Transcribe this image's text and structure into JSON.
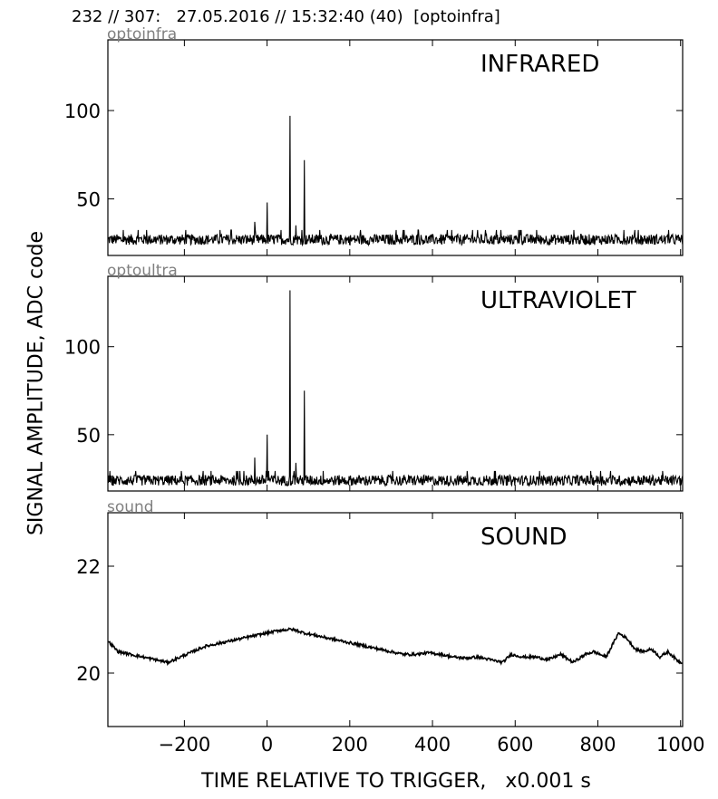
{
  "header": "232 // 307:   27.05.2016 // 15:32:40 (40)  [optoinfra]",
  "ylabel": "SIGNAL AMPLITUDE,  ADC code",
  "xlabel": "TIME RELATIVE TO TRIGGER,   x0.001 s",
  "chart_data": [
    {
      "type": "line",
      "channel_label": "optoinfra",
      "title": "INFRARED",
      "xlim": [
        -385,
        1005
      ],
      "ylim": [
        18,
        140
      ],
      "xticks": [
        -200,
        0,
        200,
        400,
        600,
        800,
        1000
      ],
      "yticks": [
        50,
        100
      ],
      "ytick_labels": [
        "50",
        "100"
      ],
      "baseline": 27,
      "noise": 3,
      "spikes": [
        [
          -30,
          37
        ],
        [
          0,
          48
        ],
        [
          55,
          97
        ],
        [
          70,
          35
        ],
        [
          90,
          72
        ]
      ],
      "color": "#000000"
    },
    {
      "type": "line",
      "channel_label": "optoultra",
      "title": "ULTRAVIOLET",
      "xlim": [
        -385,
        1005
      ],
      "ylim": [
        18,
        140
      ],
      "xticks": [
        -200,
        0,
        200,
        400,
        600,
        800,
        1000
      ],
      "yticks": [
        50,
        100
      ],
      "ytick_labels": [
        "50",
        "100"
      ],
      "baseline": 24,
      "noise": 3,
      "spikes": [
        [
          -30,
          37
        ],
        [
          0,
          50
        ],
        [
          55,
          132
        ],
        [
          70,
          34
        ],
        [
          90,
          75
        ]
      ],
      "color": "#000000"
    },
    {
      "type": "line",
      "channel_label": "sound",
      "title": "SOUND",
      "xlim": [
        -385,
        1005
      ],
      "ylim": [
        19,
        23
      ],
      "xticks": [
        -200,
        0,
        200,
        400,
        600,
        800,
        1000
      ],
      "xtick_labels": [
        "−200",
        "0",
        "200",
        "400",
        "600",
        "800",
        "1000"
      ],
      "yticks": [
        20,
        22
      ],
      "ytick_labels": [
        "20",
        "22"
      ],
      "x": [
        -385,
        -360,
        -330,
        -300,
        -270,
        -240,
        -210,
        -180,
        -150,
        -120,
        -90,
        -60,
        -30,
        0,
        30,
        60,
        90,
        120,
        150,
        180,
        210,
        240,
        270,
        300,
        330,
        360,
        390,
        420,
        450,
        480,
        510,
        540,
        570,
        590,
        620,
        650,
        680,
        710,
        740,
        770,
        790,
        820,
        850,
        870,
        890,
        910,
        930,
        950,
        970,
        990,
        1000
      ],
      "y": [
        20.6,
        20.4,
        20.35,
        20.3,
        20.25,
        20.2,
        20.3,
        20.4,
        20.5,
        20.55,
        20.6,
        20.65,
        20.7,
        20.75,
        20.8,
        20.82,
        20.75,
        20.7,
        20.65,
        20.6,
        20.55,
        20.5,
        20.45,
        20.4,
        20.35,
        20.35,
        20.38,
        20.35,
        20.3,
        20.28,
        20.3,
        20.25,
        20.2,
        20.35,
        20.3,
        20.3,
        20.25,
        20.35,
        20.2,
        20.35,
        20.4,
        20.3,
        20.75,
        20.65,
        20.45,
        20.4,
        20.45,
        20.3,
        20.4,
        20.25,
        20.2
      ],
      "color": "#000000"
    }
  ]
}
